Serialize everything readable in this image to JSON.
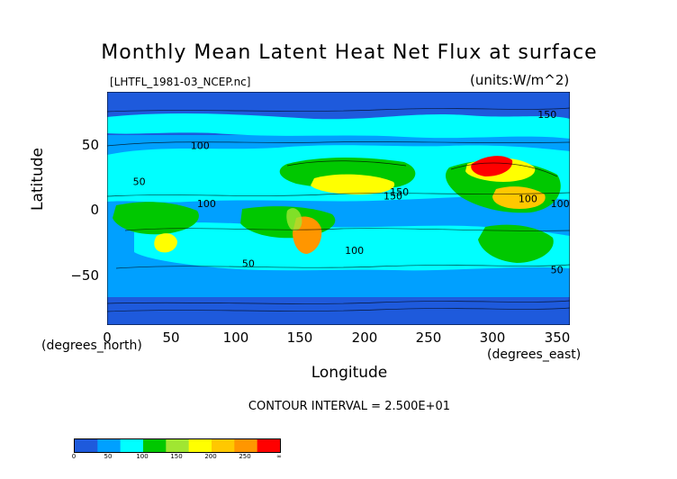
{
  "header": {
    "title": "Monthly Mean Latent Heat Net Flux at surface",
    "file": "[LHTFL_1981-03_NCEP.nc]",
    "units": "(units:W/m^2)"
  },
  "axes": {
    "ylabel": "Latitude",
    "xlabel": "Longitude",
    "x_unit_note": "(degrees_east)",
    "y_unit_note": "(degrees_north)",
    "yticks": [
      "50",
      "0",
      "−50"
    ],
    "xticks": [
      "0",
      "50",
      "100",
      "150",
      "200",
      "250",
      "300",
      "350"
    ]
  },
  "footer": {
    "contour_interval": "CONTOUR INTERVAL = 2.500E+01"
  },
  "colorbar": {
    "labels": [
      "0",
      "50",
      "100",
      "150",
      "200",
      "250",
      "∞"
    ],
    "colors": [
      "#1e5adc",
      "#00a0ff",
      "#00ffff",
      "#00c800",
      "#a0e632",
      "#ffff00",
      "#ffc800",
      "#ff9600",
      "#ff0000"
    ]
  },
  "chart_data": {
    "type": "heatmap",
    "title": "Monthly Mean Latent Heat Net Flux at surface",
    "xlabel": "Longitude",
    "ylabel": "Latitude",
    "xlim": [
      0,
      360
    ],
    "ylim": [
      -90,
      90
    ],
    "x_ticks": [
      0,
      50,
      100,
      150,
      200,
      250,
      300,
      350
    ],
    "y_ticks": [
      -50,
      0,
      50
    ],
    "units": "W/m^2",
    "contour_interval": 25,
    "levels": [
      0,
      25,
      50,
      75,
      100,
      125,
      150,
      175,
      200,
      225,
      250
    ],
    "contour_labels": [
      {
        "lon": 20,
        "lat": 18,
        "value": 50
      },
      {
        "lon": 65,
        "lat": 46,
        "value": 100
      },
      {
        "lon": 70,
        "lat": 1,
        "value": 100
      },
      {
        "lon": 105,
        "lat": -45,
        "value": 50
      },
      {
        "lon": 185,
        "lat": -35,
        "value": 100
      },
      {
        "lon": 215,
        "lat": 7,
        "value": 150
      },
      {
        "lon": 220,
        "lat": 10,
        "value": 150
      },
      {
        "lon": 335,
        "lat": 70,
        "value": 150
      },
      {
        "lon": 320,
        "lat": 5,
        "value": 100
      },
      {
        "lon": 345,
        "lat": -50,
        "value": 50
      },
      {
        "lon": 345,
        "lat": 1,
        "value": 100
      }
    ],
    "features": [
      {
        "lon": 295,
        "lat": 35,
        "value": 275
      },
      {
        "lon": 318,
        "lat": 15,
        "value": 200
      },
      {
        "lon": 230,
        "lat": 10,
        "value": 175
      },
      {
        "lon": 158,
        "lat": -20,
        "value": 200
      },
      {
        "lon": 45,
        "lat": -25,
        "value": 175
      },
      {
        "lon": 190,
        "lat": 30,
        "value": 150
      },
      {
        "lon": 145,
        "lat": 35,
        "value": 125
      }
    ]
  }
}
